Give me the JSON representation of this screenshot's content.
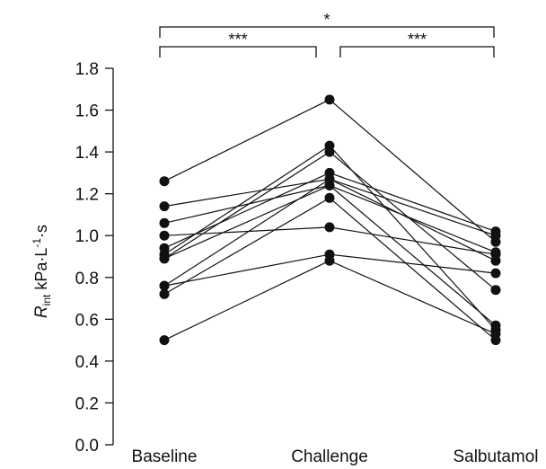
{
  "chart_data": {
    "type": "line",
    "title": "",
    "categories": [
      "Baseline",
      "Challenge",
      "Salbutamol"
    ],
    "ylabel": {
      "italic": "R",
      "sub": "int",
      "main": " kPa·L",
      "sup": "-1",
      "tail": "·s"
    },
    "ylim": [
      0.0,
      1.8
    ],
    "yticks": [
      {
        "value": 0.0,
        "label": "0.0"
      },
      {
        "value": 0.2,
        "label": "0.2"
      },
      {
        "value": 0.4,
        "label": "0.4"
      },
      {
        "value": 0.6,
        "label": "0.6"
      },
      {
        "value": 0.8,
        "label": "0.8"
      },
      {
        "value": 1.0,
        "label": "1.0"
      },
      {
        "value": 1.2,
        "label": "1.2"
      },
      {
        "value": 1.4,
        "label": "1.4"
      },
      {
        "value": 1.6,
        "label": "1.6"
      },
      {
        "value": 1.8,
        "label": "1.8"
      }
    ],
    "grid": false,
    "subjects": [
      [
        1.26,
        1.65,
        0.97
      ],
      [
        1.14,
        1.27,
        1.0
      ],
      [
        1.06,
        1.24,
        0.92
      ],
      [
        1.0,
        1.04,
        0.91
      ],
      [
        0.94,
        1.3,
        1.02
      ],
      [
        0.91,
        1.43,
        0.55
      ],
      [
        0.89,
        1.4,
        0.74
      ],
      [
        0.89,
        1.24,
        0.57
      ],
      [
        0.76,
        0.91,
        0.82
      ],
      [
        0.72,
        1.18,
        0.5
      ],
      [
        0.5,
        0.88,
        0.53
      ],
      [
        0.76,
        1.27,
        0.88
      ]
    ],
    "significance": [
      {
        "from": 0,
        "to": 1,
        "label": "***",
        "level": 1
      },
      {
        "from": 1,
        "to": 2,
        "label": "***",
        "level": 1
      },
      {
        "from": 0,
        "to": 2,
        "label": "*",
        "level": 2
      }
    ]
  }
}
